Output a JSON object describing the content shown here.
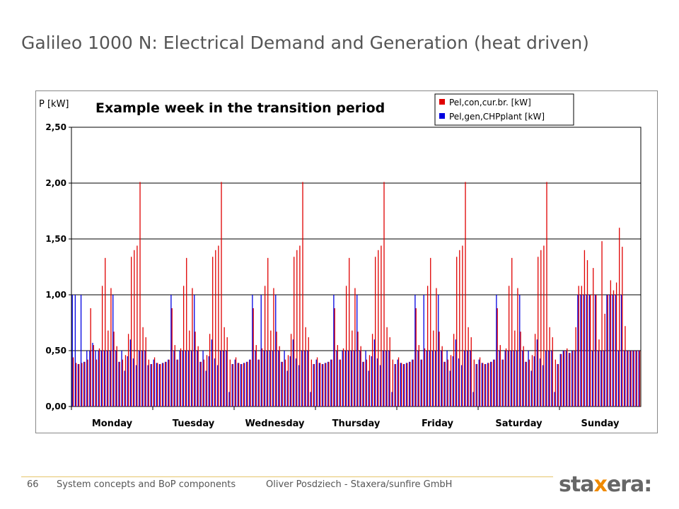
{
  "slide": {
    "title": "Galileo 1000 N: Electrical Demand and Generation (heat driven)",
    "page_number": "66",
    "footer_left": "System concepts and BoP components",
    "footer_right": "Oliver Posdziech - Staxera/sunfire GmbH",
    "logo_prefix": "sta",
    "logo_x": "x",
    "logo_suffix": "era:"
  },
  "chart_data": {
    "type": "bar",
    "title": "Example week in the transition period",
    "ylabel": "P [kW]",
    "ylim": [
      0,
      2.5
    ],
    "yticks": [
      "0,00",
      "0,50",
      "1,00",
      "1,50",
      "2,00",
      "2,50"
    ],
    "grid": true,
    "legend_position": "top-right",
    "categories": [
      "Monday",
      "Tuesday",
      "Wednesday",
      "Thursday",
      "Friday",
      "Saturday",
      "Sunday"
    ],
    "series": [
      {
        "name": "Pel,con,cur.br. [kW]",
        "color": "#e00000",
        "values": [
          [
            0.44,
            0.39,
            0.38,
            0.39,
            0.4,
            0.42,
            0.88,
            0.55,
            0.42,
            0.52,
            1.08,
            1.33,
            0.68,
            1.06,
            0.67,
            0.54,
            0.4,
            0.42,
            0.46,
            0.65,
            1.34,
            1.4,
            1.44,
            2.01,
            0.71,
            0.62,
            0.42,
            0.38
          ],
          [
            0.44,
            0.39,
            0.38,
            0.39,
            0.4,
            0.42,
            0.88,
            0.55,
            0.42,
            0.52,
            1.08,
            1.33,
            0.68,
            1.06,
            0.67,
            0.54,
            0.4,
            0.42,
            0.46,
            0.65,
            1.34,
            1.4,
            1.44,
            2.01,
            0.71,
            0.62,
            0.42,
            0.38
          ],
          [
            0.44,
            0.39,
            0.38,
            0.39,
            0.4,
            0.42,
            0.88,
            0.55,
            0.42,
            0.52,
            1.08,
            1.33,
            0.68,
            1.06,
            0.67,
            0.54,
            0.4,
            0.42,
            0.46,
            0.65,
            1.34,
            1.4,
            1.44,
            2.01,
            0.71,
            0.62,
            0.42,
            0.38
          ],
          [
            0.44,
            0.39,
            0.38,
            0.39,
            0.4,
            0.42,
            0.88,
            0.55,
            0.42,
            0.52,
            1.08,
            1.33,
            0.68,
            1.06,
            0.67,
            0.54,
            0.4,
            0.42,
            0.46,
            0.65,
            1.34,
            1.4,
            1.44,
            2.01,
            0.71,
            0.62,
            0.42,
            0.38
          ],
          [
            0.44,
            0.39,
            0.38,
            0.39,
            0.4,
            0.42,
            0.88,
            0.55,
            0.42,
            0.52,
            1.08,
            1.33,
            0.68,
            1.06,
            0.67,
            0.54,
            0.4,
            0.42,
            0.46,
            0.65,
            1.34,
            1.4,
            1.44,
            2.01,
            0.71,
            0.62,
            0.42,
            0.38
          ],
          [
            0.44,
            0.39,
            0.38,
            0.39,
            0.4,
            0.42,
            0.88,
            0.55,
            0.42,
            0.52,
            1.08,
            1.33,
            0.68,
            1.06,
            0.67,
            0.54,
            0.4,
            0.42,
            0.46,
            0.65,
            1.34,
            1.4,
            1.44,
            2.01,
            0.71,
            0.62,
            0.42,
            0.38
          ],
          [
            0.47,
            0.5,
            0.52,
            0.48,
            0.5,
            0.71,
            1.08,
            1.08,
            1.4,
            1.31,
            1.0,
            1.24,
            1.0,
            0.6,
            1.48,
            0.83,
            1.0,
            1.13,
            1.04,
            1.11,
            1.6,
            1.43,
            0.72,
            0.5,
            0.5,
            0.5,
            0.5,
            0.5
          ]
        ]
      },
      {
        "name": "Pel,gen,CHPplant [kW]",
        "color": "#0000e0",
        "values": [
          [
            1.0,
            1.0,
            0.38,
            1.0,
            0.4,
            0.5,
            0.5,
            0.57,
            0.5,
            0.5,
            0.5,
            0.5,
            0.5,
            0.5,
            1.0,
            0.5,
            0.4,
            0.5,
            0.32,
            0.45,
            0.6,
            0.43,
            0.37,
            0.5,
            0.5,
            0.5,
            0.37,
            0.38
          ],
          [
            0.42,
            0.39,
            0.38,
            0.39,
            0.4,
            0.42,
            1.0,
            0.5,
            0.42,
            0.5,
            0.5,
            0.5,
            0.5,
            0.5,
            1.0,
            0.5,
            0.4,
            0.5,
            0.32,
            0.45,
            0.6,
            0.43,
            0.37,
            0.5,
            0.5,
            0.5,
            0.13,
            0.38
          ],
          [
            0.42,
            0.39,
            0.38,
            0.39,
            0.4,
            0.42,
            1.0,
            0.5,
            0.42,
            1.0,
            0.5,
            0.5,
            0.5,
            0.5,
            1.0,
            0.5,
            0.4,
            0.5,
            0.32,
            0.45,
            0.6,
            0.43,
            0.37,
            0.5,
            0.5,
            0.5,
            0.13,
            0.38
          ],
          [
            0.42,
            0.39,
            0.38,
            0.39,
            0.4,
            0.42,
            1.0,
            0.5,
            0.42,
            0.5,
            0.5,
            0.5,
            0.5,
            0.5,
            1.0,
            0.5,
            0.4,
            0.5,
            0.32,
            0.45,
            0.6,
            0.43,
            0.37,
            0.5,
            0.5,
            0.5,
            0.13,
            0.38
          ],
          [
            0.42,
            0.39,
            0.38,
            0.39,
            0.4,
            0.42,
            1.0,
            0.5,
            0.42,
            1.0,
            0.5,
            0.5,
            0.5,
            0.5,
            1.0,
            0.5,
            0.4,
            0.5,
            0.32,
            0.45,
            0.6,
            0.43,
            0.37,
            0.5,
            0.5,
            0.5,
            0.13,
            0.38
          ],
          [
            0.42,
            0.39,
            0.38,
            0.39,
            0.4,
            0.42,
            1.0,
            0.5,
            0.42,
            0.5,
            0.5,
            0.5,
            0.5,
            0.5,
            1.0,
            0.5,
            0.4,
            0.5,
            0.32,
            0.45,
            0.6,
            0.43,
            0.37,
            0.5,
            0.5,
            0.5,
            0.13,
            0.38
          ],
          [
            0.47,
            0.5,
            0.5,
            0.48,
            0.5,
            0.5,
            1.0,
            1.0,
            1.0,
            1.0,
            1.0,
            0.5,
            1.0,
            0.5,
            0.5,
            0.5,
            1.0,
            1.0,
            1.0,
            1.0,
            0.5,
            1.0,
            0.5,
            0.5,
            0.5,
            0.5,
            0.5,
            0.5
          ]
        ]
      }
    ]
  }
}
